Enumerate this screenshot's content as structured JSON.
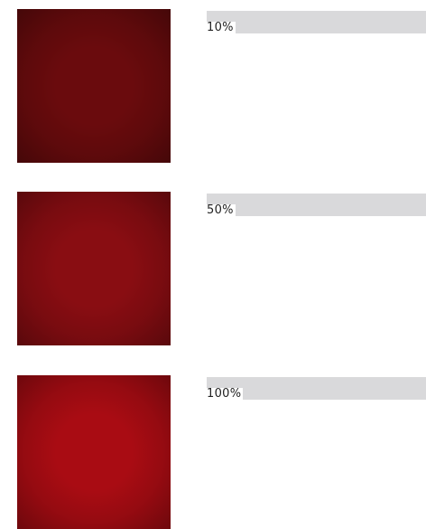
{
  "swatches": [
    {
      "label": "10%",
      "color": "#6a0b0d",
      "level": 0.1
    },
    {
      "label": "50%",
      "color": "#890d12",
      "level": 0.5
    },
    {
      "label": "100%",
      "color": "#a90c13",
      "level": 1.0
    }
  ]
}
